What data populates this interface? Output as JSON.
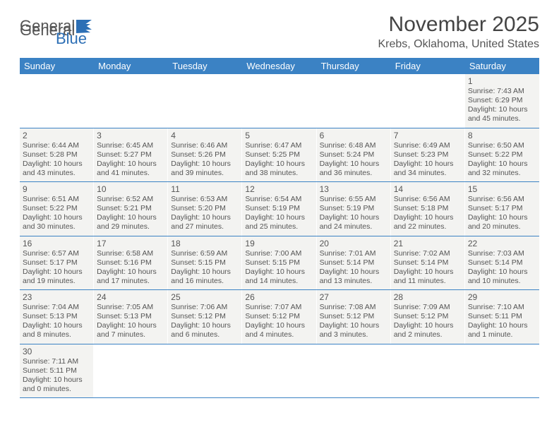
{
  "logo": {
    "part1": "General",
    "part2": "Blue"
  },
  "title": "November 2025",
  "location": "Krebs, Oklahoma, United States",
  "colors": {
    "header_bg": "#3b82c4",
    "header_text": "#ffffff",
    "cell_bg": "#f3f3f1",
    "border": "#3b82c4",
    "text": "#555555"
  },
  "day_names": [
    "Sunday",
    "Monday",
    "Tuesday",
    "Wednesday",
    "Thursday",
    "Friday",
    "Saturday"
  ],
  "weeks": [
    [
      null,
      null,
      null,
      null,
      null,
      null,
      {
        "d": "1",
        "sunrise": "7:43 AM",
        "sunset": "6:29 PM",
        "daylight": "10 hours and 45 minutes."
      }
    ],
    [
      {
        "d": "2",
        "sunrise": "6:44 AM",
        "sunset": "5:28 PM",
        "daylight": "10 hours and 43 minutes."
      },
      {
        "d": "3",
        "sunrise": "6:45 AM",
        "sunset": "5:27 PM",
        "daylight": "10 hours and 41 minutes."
      },
      {
        "d": "4",
        "sunrise": "6:46 AM",
        "sunset": "5:26 PM",
        "daylight": "10 hours and 39 minutes."
      },
      {
        "d": "5",
        "sunrise": "6:47 AM",
        "sunset": "5:25 PM",
        "daylight": "10 hours and 38 minutes."
      },
      {
        "d": "6",
        "sunrise": "6:48 AM",
        "sunset": "5:24 PM",
        "daylight": "10 hours and 36 minutes."
      },
      {
        "d": "7",
        "sunrise": "6:49 AM",
        "sunset": "5:23 PM",
        "daylight": "10 hours and 34 minutes."
      },
      {
        "d": "8",
        "sunrise": "6:50 AM",
        "sunset": "5:22 PM",
        "daylight": "10 hours and 32 minutes."
      }
    ],
    [
      {
        "d": "9",
        "sunrise": "6:51 AM",
        "sunset": "5:22 PM",
        "daylight": "10 hours and 30 minutes."
      },
      {
        "d": "10",
        "sunrise": "6:52 AM",
        "sunset": "5:21 PM",
        "daylight": "10 hours and 29 minutes."
      },
      {
        "d": "11",
        "sunrise": "6:53 AM",
        "sunset": "5:20 PM",
        "daylight": "10 hours and 27 minutes."
      },
      {
        "d": "12",
        "sunrise": "6:54 AM",
        "sunset": "5:19 PM",
        "daylight": "10 hours and 25 minutes."
      },
      {
        "d": "13",
        "sunrise": "6:55 AM",
        "sunset": "5:19 PM",
        "daylight": "10 hours and 24 minutes."
      },
      {
        "d": "14",
        "sunrise": "6:56 AM",
        "sunset": "5:18 PM",
        "daylight": "10 hours and 22 minutes."
      },
      {
        "d": "15",
        "sunrise": "6:56 AM",
        "sunset": "5:17 PM",
        "daylight": "10 hours and 20 minutes."
      }
    ],
    [
      {
        "d": "16",
        "sunrise": "6:57 AM",
        "sunset": "5:17 PM",
        "daylight": "10 hours and 19 minutes."
      },
      {
        "d": "17",
        "sunrise": "6:58 AM",
        "sunset": "5:16 PM",
        "daylight": "10 hours and 17 minutes."
      },
      {
        "d": "18",
        "sunrise": "6:59 AM",
        "sunset": "5:15 PM",
        "daylight": "10 hours and 16 minutes."
      },
      {
        "d": "19",
        "sunrise": "7:00 AM",
        "sunset": "5:15 PM",
        "daylight": "10 hours and 14 minutes."
      },
      {
        "d": "20",
        "sunrise": "7:01 AM",
        "sunset": "5:14 PM",
        "daylight": "10 hours and 13 minutes."
      },
      {
        "d": "21",
        "sunrise": "7:02 AM",
        "sunset": "5:14 PM",
        "daylight": "10 hours and 11 minutes."
      },
      {
        "d": "22",
        "sunrise": "7:03 AM",
        "sunset": "5:14 PM",
        "daylight": "10 hours and 10 minutes."
      }
    ],
    [
      {
        "d": "23",
        "sunrise": "7:04 AM",
        "sunset": "5:13 PM",
        "daylight": "10 hours and 8 minutes."
      },
      {
        "d": "24",
        "sunrise": "7:05 AM",
        "sunset": "5:13 PM",
        "daylight": "10 hours and 7 minutes."
      },
      {
        "d": "25",
        "sunrise": "7:06 AM",
        "sunset": "5:12 PM",
        "daylight": "10 hours and 6 minutes."
      },
      {
        "d": "26",
        "sunrise": "7:07 AM",
        "sunset": "5:12 PM",
        "daylight": "10 hours and 4 minutes."
      },
      {
        "d": "27",
        "sunrise": "7:08 AM",
        "sunset": "5:12 PM",
        "daylight": "10 hours and 3 minutes."
      },
      {
        "d": "28",
        "sunrise": "7:09 AM",
        "sunset": "5:12 PM",
        "daylight": "10 hours and 2 minutes."
      },
      {
        "d": "29",
        "sunrise": "7:10 AM",
        "sunset": "5:11 PM",
        "daylight": "10 hours and 1 minute."
      }
    ],
    [
      {
        "d": "30",
        "sunrise": "7:11 AM",
        "sunset": "5:11 PM",
        "daylight": "10 hours and 0 minutes."
      },
      null,
      null,
      null,
      null,
      null,
      null
    ]
  ]
}
